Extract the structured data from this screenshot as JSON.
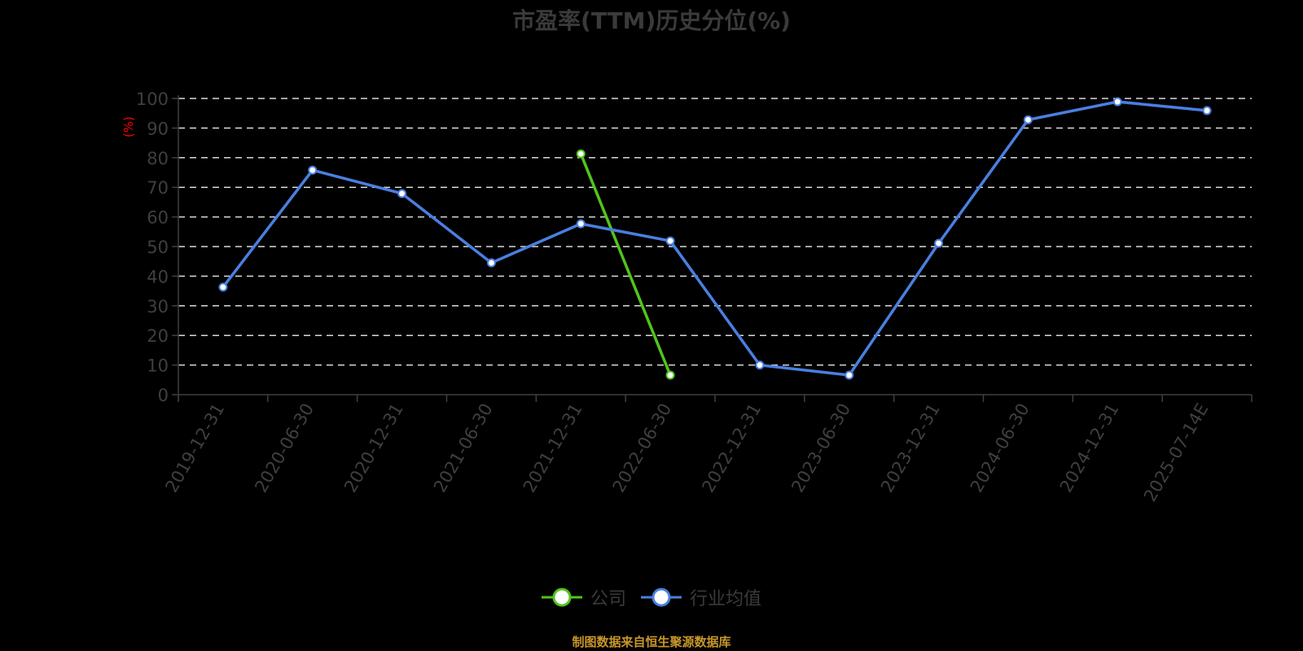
{
  "title": "市盈率(TTM)历史分位(%)",
  "source": "制图数据来自恒生聚源数据库",
  "legend": [
    {
      "label": "公司",
      "color": "#52c41a"
    },
    {
      "label": "行业均值",
      "color": "#4a7fe0"
    }
  ],
  "y_unit": "(%)",
  "chart_data": {
    "type": "line",
    "title": "市盈率(TTM)历史分位(%)",
    "xlabel": "",
    "ylabel": "(%)",
    "ylim": [
      0,
      100
    ],
    "yticks": [
      0,
      10,
      20,
      30,
      40,
      50,
      60,
      70,
      80,
      90,
      100
    ],
    "grid": true,
    "legend_position": "bottom",
    "categories": [
      "2019-12-31",
      "2020-06-30",
      "2020-12-31",
      "2021-06-30",
      "2021-12-31",
      "2022-06-30",
      "2022-12-31",
      "2023-06-30",
      "2023-12-31",
      "2024-06-30",
      "2024-12-31",
      "2025-07-14E"
    ],
    "series": [
      {
        "name": "公司",
        "color": "#52c41a",
        "values": [
          null,
          null,
          null,
          null,
          81.3,
          6.6,
          null,
          null,
          null,
          null,
          null,
          null
        ]
      },
      {
        "name": "行业均值",
        "color": "#4a7fe0",
        "values": [
          36.3,
          75.8,
          67.9,
          44.5,
          57.7,
          51.9,
          10.0,
          6.6,
          51.1,
          92.8,
          98.9,
          95.9
        ]
      }
    ]
  }
}
